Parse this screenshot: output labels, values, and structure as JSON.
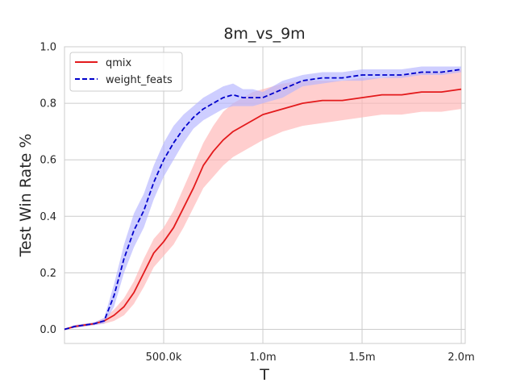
{
  "chart_data": {
    "type": "line",
    "title": "8m_vs_9m",
    "xlabel": "T",
    "ylabel": "Test Win Rate %",
    "xlim": [
      0,
      2020000
    ],
    "ylim": [
      -0.05,
      1.0
    ],
    "x_ticks": [
      500000,
      1000000,
      1500000,
      2000000
    ],
    "x_tick_labels": [
      "500.0k",
      "1.0m",
      "1.5m",
      "2.0m"
    ],
    "y_ticks": [
      0.0,
      0.2,
      0.4,
      0.6,
      0.8,
      1.0
    ],
    "y_tick_labels": [
      "0.0",
      "0.2",
      "0.4",
      "0.6",
      "0.8",
      "1.0"
    ],
    "grid": true,
    "legend_position": "top-left",
    "x": [
      0,
      50000,
      100000,
      150000,
      200000,
      250000,
      300000,
      350000,
      400000,
      450000,
      500000,
      550000,
      600000,
      650000,
      700000,
      750000,
      800000,
      850000,
      900000,
      950000,
      1000000,
      1100000,
      1200000,
      1300000,
      1400000,
      1500000,
      1600000,
      1700000,
      1800000,
      1900000,
      2000000
    ],
    "series": [
      {
        "name": "qmix",
        "color": "#e31a1c",
        "band_color": "#ffb3b3",
        "line_style": "solid",
        "values": [
          0.0,
          0.01,
          0.015,
          0.02,
          0.03,
          0.05,
          0.08,
          0.13,
          0.2,
          0.27,
          0.31,
          0.36,
          0.43,
          0.5,
          0.58,
          0.63,
          0.67,
          0.7,
          0.72,
          0.74,
          0.76,
          0.78,
          0.8,
          0.81,
          0.81,
          0.82,
          0.83,
          0.83,
          0.84,
          0.84,
          0.85
        ],
        "lower": [
          0.0,
          0.005,
          0.01,
          0.015,
          0.02,
          0.03,
          0.05,
          0.09,
          0.15,
          0.22,
          0.26,
          0.3,
          0.36,
          0.43,
          0.5,
          0.54,
          0.58,
          0.61,
          0.63,
          0.65,
          0.67,
          0.7,
          0.72,
          0.73,
          0.74,
          0.75,
          0.76,
          0.76,
          0.77,
          0.77,
          0.78
        ],
        "upper": [
          0.0,
          0.015,
          0.02,
          0.025,
          0.04,
          0.07,
          0.11,
          0.17,
          0.25,
          0.32,
          0.36,
          0.42,
          0.5,
          0.58,
          0.66,
          0.72,
          0.77,
          0.8,
          0.82,
          0.84,
          0.85,
          0.87,
          0.88,
          0.88,
          0.88,
          0.89,
          0.89,
          0.9,
          0.91,
          0.91,
          0.92
        ]
      },
      {
        "name": "weight_feats",
        "color": "#0000cc",
        "band_color": "#b3b3ff",
        "line_style": "dashed",
        "values": [
          0.0,
          0.01,
          0.015,
          0.02,
          0.03,
          0.12,
          0.25,
          0.35,
          0.42,
          0.52,
          0.6,
          0.66,
          0.71,
          0.75,
          0.78,
          0.8,
          0.82,
          0.83,
          0.82,
          0.82,
          0.82,
          0.85,
          0.88,
          0.89,
          0.89,
          0.9,
          0.9,
          0.9,
          0.91,
          0.91,
          0.92
        ],
        "lower": [
          0.0,
          0.005,
          0.01,
          0.015,
          0.02,
          0.08,
          0.2,
          0.29,
          0.36,
          0.46,
          0.54,
          0.6,
          0.66,
          0.71,
          0.74,
          0.76,
          0.78,
          0.79,
          0.79,
          0.79,
          0.8,
          0.82,
          0.86,
          0.87,
          0.88,
          0.88,
          0.89,
          0.89,
          0.9,
          0.9,
          0.91
        ],
        "upper": [
          0.0,
          0.015,
          0.02,
          0.025,
          0.04,
          0.16,
          0.3,
          0.41,
          0.48,
          0.58,
          0.66,
          0.72,
          0.76,
          0.79,
          0.82,
          0.84,
          0.86,
          0.87,
          0.85,
          0.85,
          0.84,
          0.88,
          0.9,
          0.91,
          0.91,
          0.92,
          0.92,
          0.92,
          0.93,
          0.93,
          0.93
        ]
      }
    ]
  }
}
